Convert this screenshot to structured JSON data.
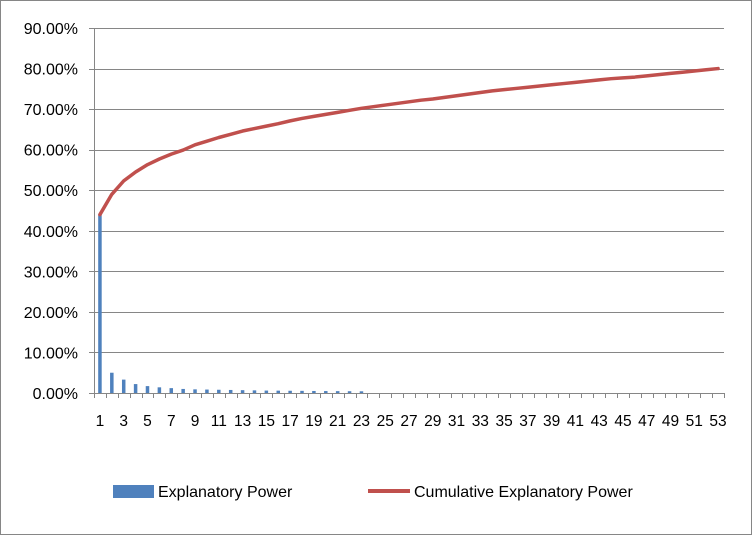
{
  "chart_data": {
    "type": "bar+line",
    "title": "",
    "xlabel": "",
    "ylabel": "",
    "ylim": [
      0,
      0.9
    ],
    "y_ticks": [
      "0.00%",
      "10.00%",
      "20.00%",
      "30.00%",
      "40.00%",
      "50.00%",
      "60.00%",
      "70.00%",
      "80.00%",
      "90.00%"
    ],
    "y_tick_values": [
      0,
      0.1,
      0.2,
      0.3,
      0.4,
      0.5,
      0.6,
      0.7,
      0.8,
      0.9
    ],
    "x_ticks": [
      "1",
      "3",
      "5",
      "7",
      "9",
      "11",
      "13",
      "15",
      "17",
      "19",
      "21",
      "23",
      "25",
      "27",
      "29",
      "31",
      "33",
      "35",
      "37",
      "39",
      "41",
      "43",
      "45",
      "47",
      "49",
      "51",
      "53"
    ],
    "categories": [
      1,
      2,
      3,
      4,
      5,
      6,
      7,
      8,
      9,
      10,
      11,
      12,
      13,
      14,
      15,
      16,
      17,
      18,
      19,
      20,
      21,
      22,
      23,
      24,
      25,
      26,
      27,
      28,
      29,
      30,
      31,
      32,
      33,
      34,
      35,
      36,
      37,
      38,
      39,
      40,
      41,
      42,
      43,
      44,
      45,
      46,
      47,
      48,
      49,
      50,
      51,
      52,
      53
    ],
    "grid": true,
    "legend_position": "bottom",
    "series": [
      {
        "name": "Explanatory Power",
        "type": "bar",
        "color": "#4F81BD",
        "values": [
          0.44,
          0.05,
          0.033,
          0.022,
          0.017,
          0.014,
          0.012,
          0.01,
          0.009,
          0.0085,
          0.008,
          0.0075,
          0.007,
          0.0065,
          0.006,
          0.0058,
          0.0055,
          0.0053,
          0.005,
          0.0048,
          0.0046,
          0.0044,
          0.0042,
          0,
          0,
          0,
          0,
          0,
          0,
          0,
          0,
          0,
          0,
          0,
          0,
          0,
          0,
          0,
          0,
          0,
          0,
          0,
          0,
          0,
          0,
          0,
          0,
          0,
          0,
          0,
          0,
          0,
          0
        ]
      },
      {
        "name": "Cumulative Explanatory Power",
        "type": "line",
        "color": "#C0504D",
        "values": [
          0.44,
          0.49,
          0.523,
          0.545,
          0.563,
          0.577,
          0.589,
          0.599,
          0.612,
          0.621,
          0.63,
          0.638,
          0.646,
          0.652,
          0.658,
          0.664,
          0.671,
          0.677,
          0.682,
          0.687,
          0.692,
          0.697,
          0.702,
          0.706,
          0.71,
          0.714,
          0.718,
          0.722,
          0.725,
          0.729,
          0.733,
          0.737,
          0.741,
          0.745,
          0.748,
          0.751,
          0.754,
          0.757,
          0.76,
          0.763,
          0.766,
          0.769,
          0.772,
          0.775,
          0.777,
          0.779,
          0.782,
          0.785,
          0.788,
          0.791,
          0.794,
          0.797,
          0.8
        ]
      }
    ]
  }
}
